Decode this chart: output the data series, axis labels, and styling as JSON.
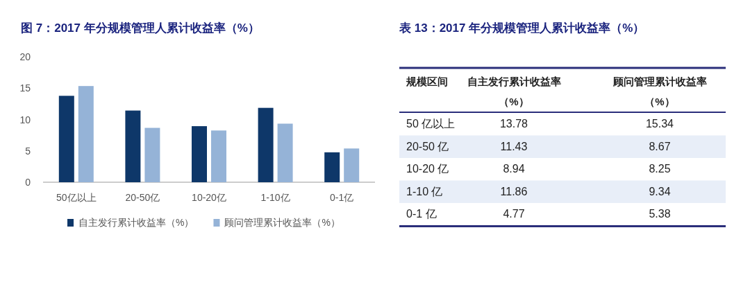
{
  "chart_data": [
    {
      "type": "bar",
      "title": "图 7：2017 年分规模管理人累计收益率（%）",
      "categories": [
        "50亿以上",
        "20-50亿",
        "10-20亿",
        "1-10亿",
        "0-1亿"
      ],
      "series": [
        {
          "name": "自主发行累计收益率（%）",
          "color": "#0e3769",
          "values": [
            13.78,
            11.43,
            8.94,
            11.86,
            4.77
          ]
        },
        {
          "name": "顾问管理累计收益率（%）",
          "color": "#95b3d7",
          "values": [
            15.34,
            8.67,
            8.25,
            9.34,
            5.38
          ]
        }
      ],
      "ylim": [
        0,
        20
      ],
      "yticks": [
        0,
        5,
        10,
        15,
        20
      ],
      "legend": "bottom"
    },
    {
      "type": "other",
      "title": "表 13：2017 年分规模管理人累计收益率（%）",
      "annotations": [
        "规模区间",
        "自主发行累计收益率（%）",
        "顾问管理累计收益率（%）",
        "50 亿以上",
        "13.78",
        "15.34",
        "20-50 亿",
        "11.43",
        "8.67",
        "10-20 亿",
        "8.94",
        "8.25",
        "1-10 亿",
        "11.86",
        "9.34",
        "0-1 亿",
        "4.77",
        "5.38"
      ]
    }
  ]
}
